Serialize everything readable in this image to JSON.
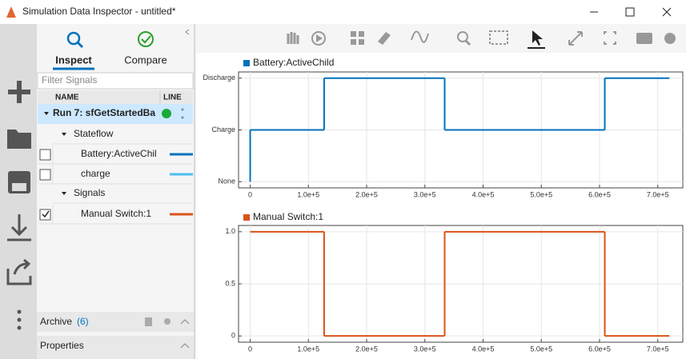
{
  "window": {
    "title": "Simulation Data Inspector - untitled*"
  },
  "tabs": [
    "Inspect",
    "Compare"
  ],
  "filter_placeholder": "Filter Signals",
  "table": {
    "columns": [
      "NAME",
      "LINE"
    ],
    "rows": [
      {
        "text": "Run 7: sfGetStartedBa"
      },
      {
        "text": "Stateflow"
      },
      {
        "text": "Battery:ActiveChil",
        "checked": false,
        "color": "#0072bd"
      },
      {
        "text": "charge",
        "checked": false,
        "color": "#4dbeee"
      },
      {
        "text": "Signals"
      },
      {
        "text": "Manual Switch:1",
        "checked": true,
        "color": "#d95319"
      }
    ]
  },
  "archive": {
    "label": "Archive",
    "count": 6
  },
  "properties": "Properties",
  "chart_data": [
    {
      "type": "step",
      "grid": true,
      "series": [
        {
          "name": "Battery:ActiveChild",
          "color": "#0072bd",
          "x": [
            0,
            0,
            127000,
            334000,
            609000,
            720000
          ],
          "values": [
            0,
            1,
            2,
            1,
            2,
            2
          ]
        }
      ],
      "xlim": [
        -20000,
        743000
      ],
      "xticks": [
        0,
        {
          "value": 100000,
          "label": "1.0e+5"
        },
        {
          "value": 200000,
          "label": "2.0e+5"
        },
        {
          "value": 300000,
          "label": "3.0e+5"
        },
        {
          "value": 400000,
          "label": "4.0e+5"
        },
        {
          "value": 500000,
          "label": "5.0e+5"
        },
        {
          "value": 600000,
          "label": "6.0e+5"
        },
        {
          "value": 700000,
          "label": "7.0e+5"
        }
      ],
      "ylim": [
        -0.12,
        2.12
      ],
      "yticks": [
        {
          "value": 0,
          "label": "None"
        },
        {
          "value": 1,
          "label": "Charge"
        },
        {
          "value": 2,
          "label": "Discharge"
        }
      ]
    },
    {
      "type": "step",
      "grid": true,
      "series": [
        {
          "name": "Manual Switch:1",
          "color": "#d95319",
          "x": [
            0,
            127000,
            334000,
            609000,
            720000
          ],
          "values": [
            1,
            0,
            1,
            0,
            0
          ]
        }
      ],
      "xlim": [
        -20000,
        743000
      ],
      "xticks": [
        0,
        {
          "value": 100000,
          "label": "1.0e+5"
        },
        {
          "value": 200000,
          "label": "2.0e+5"
        },
        {
          "value": 300000,
          "label": "3.0e+5"
        },
        {
          "value": 400000,
          "label": "4.0e+5"
        },
        {
          "value": 500000,
          "label": "5.0e+5"
        },
        {
          "value": 600000,
          "label": "6.0e+5"
        },
        {
          "value": 700000,
          "label": "7.0e+5"
        }
      ],
      "ylim": [
        -0.06,
        1.06
      ],
      "yticks": [
        0,
        0.5,
        {
          "value": 1,
          "label": "1.0"
        }
      ]
    }
  ]
}
